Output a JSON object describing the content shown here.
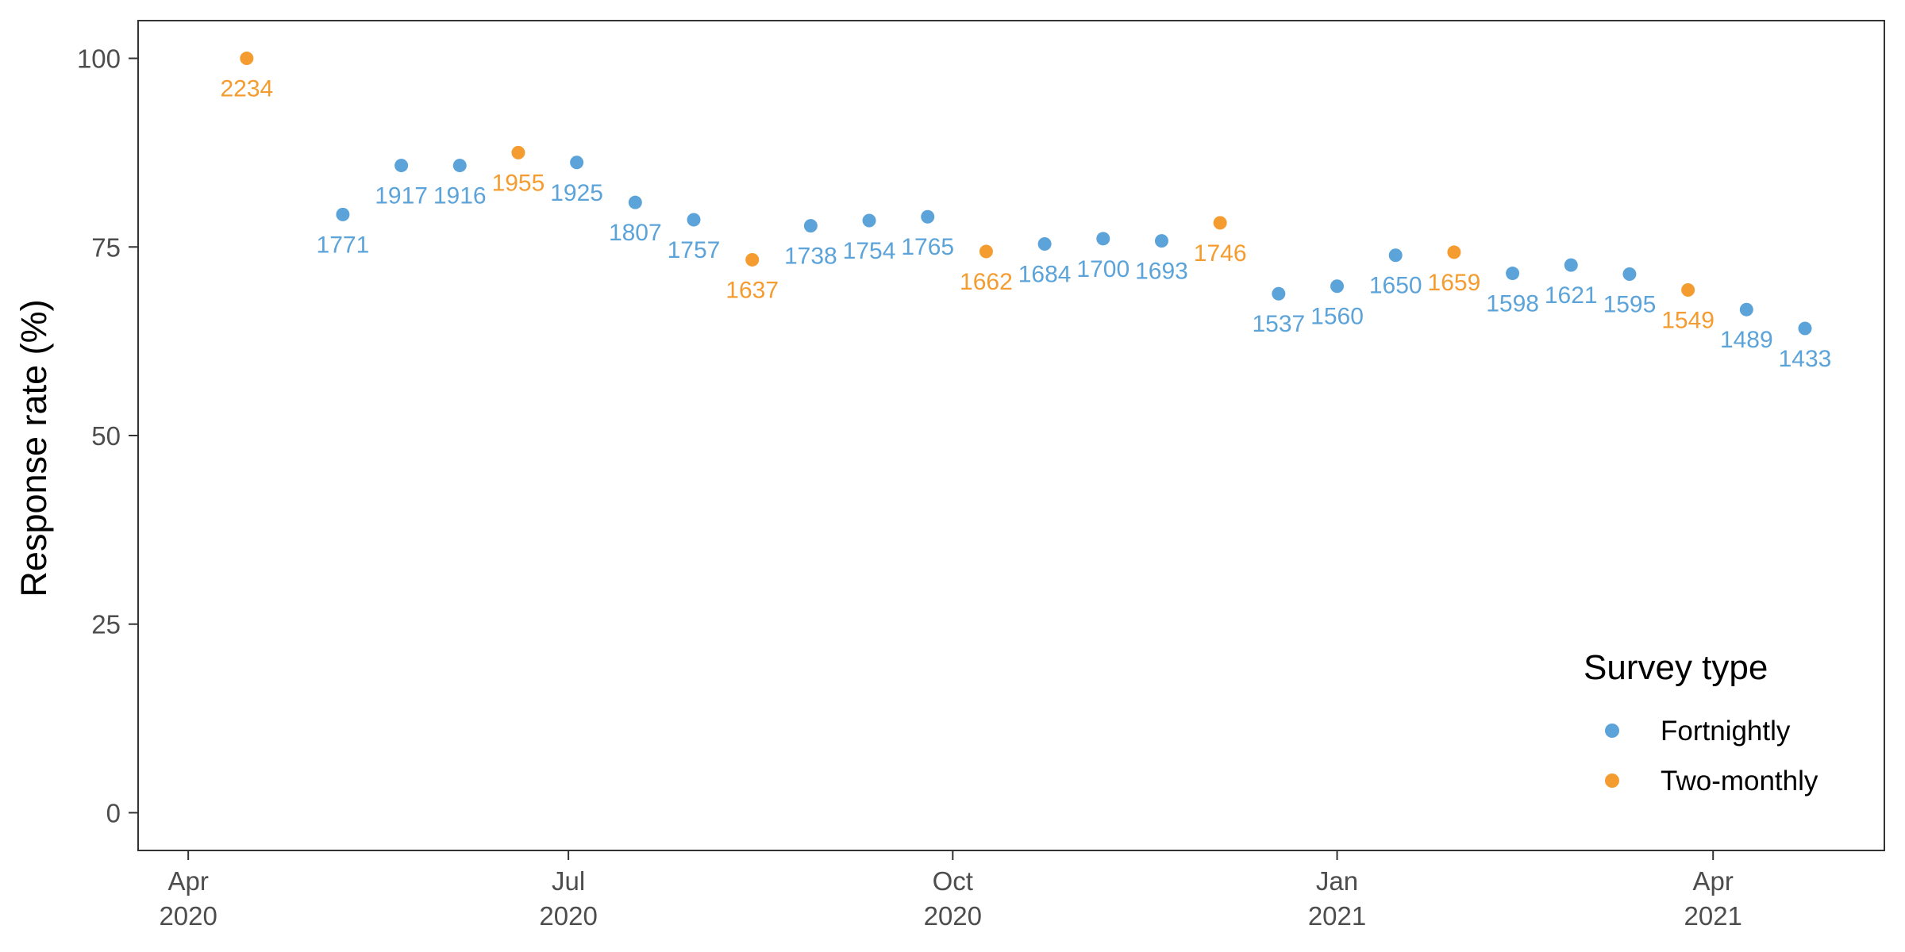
{
  "chart_data": {
    "type": "scatter",
    "xlabel": "",
    "ylabel": "Response rate (%)",
    "ylim": [
      -5,
      105
    ],
    "y_ticks": [
      0,
      25,
      50,
      75,
      100
    ],
    "xlim": [
      "2020-03-20",
      "2021-05-12"
    ],
    "x_ticks": [
      {
        "date": "2020-04-01",
        "line1": "Apr",
        "line2": "2020"
      },
      {
        "date": "2020-07-01",
        "line1": "Jul",
        "line2": "2020"
      },
      {
        "date": "2020-10-01",
        "line1": "Oct",
        "line2": "2020"
      },
      {
        "date": "2021-01-01",
        "line1": "Jan",
        "line2": "2021"
      },
      {
        "date": "2021-04-01",
        "line1": "Apr",
        "line2": "2021"
      }
    ],
    "grid": false,
    "legend": {
      "title": "Survey type",
      "position": "bottom-right",
      "entries": [
        {
          "name": "Fortnightly",
          "color": "#5BA3D9"
        },
        {
          "name": "Two-monthly",
          "color": "#F59C30"
        }
      ]
    },
    "series": [
      {
        "name": "Fortnightly",
        "color": "#5BA3D9",
        "points": [
          {
            "x": "2020-05-08",
            "y": 79.3,
            "label": "1771"
          },
          {
            "x": "2020-05-22",
            "y": 85.8,
            "label": "1917"
          },
          {
            "x": "2020-06-05",
            "y": 85.8,
            "label": "1916"
          },
          {
            "x": "2020-07-03",
            "y": 86.2,
            "label": "1925"
          },
          {
            "x": "2020-07-17",
            "y": 80.9,
            "label": "1807"
          },
          {
            "x": "2020-07-31",
            "y": 78.6,
            "label": "1757"
          },
          {
            "x": "2020-08-28",
            "y": 77.8,
            "label": "1738"
          },
          {
            "x": "2020-09-11",
            "y": 78.5,
            "label": "1754"
          },
          {
            "x": "2020-09-25",
            "y": 79.0,
            "label": "1765"
          },
          {
            "x": "2020-10-23",
            "y": 75.4,
            "label": "1684"
          },
          {
            "x": "2020-11-06",
            "y": 76.1,
            "label": "1700"
          },
          {
            "x": "2020-11-20",
            "y": 75.8,
            "label": "1693"
          },
          {
            "x": "2020-12-18",
            "y": 68.8,
            "label": "1537"
          },
          {
            "x": "2021-01-01",
            "y": 69.8,
            "label": "1560"
          },
          {
            "x": "2021-01-15",
            "y": 73.9,
            "label": "1650"
          },
          {
            "x": "2021-02-12",
            "y": 71.5,
            "label": "1598"
          },
          {
            "x": "2021-02-26",
            "y": 72.6,
            "label": "1621"
          },
          {
            "x": "2021-03-12",
            "y": 71.4,
            "label": "1595"
          },
          {
            "x": "2021-04-09",
            "y": 66.7,
            "label": "1489"
          },
          {
            "x": "2021-04-23",
            "y": 64.2,
            "label": "1433"
          }
        ]
      },
      {
        "name": "Two-monthly",
        "color": "#F59C30",
        "points": [
          {
            "x": "2020-04-15",
            "y": 100.0,
            "label": "2234"
          },
          {
            "x": "2020-06-19",
            "y": 87.5,
            "label": "1955"
          },
          {
            "x": "2020-08-14",
            "y": 73.3,
            "label": "1637"
          },
          {
            "x": "2020-10-09",
            "y": 74.4,
            "label": "1662"
          },
          {
            "x": "2020-12-04",
            "y": 78.2,
            "label": "1746"
          },
          {
            "x": "2021-01-29",
            "y": 74.3,
            "label": "1659"
          },
          {
            "x": "2021-03-26",
            "y": 69.3,
            "label": "1549"
          }
        ]
      }
    ]
  }
}
